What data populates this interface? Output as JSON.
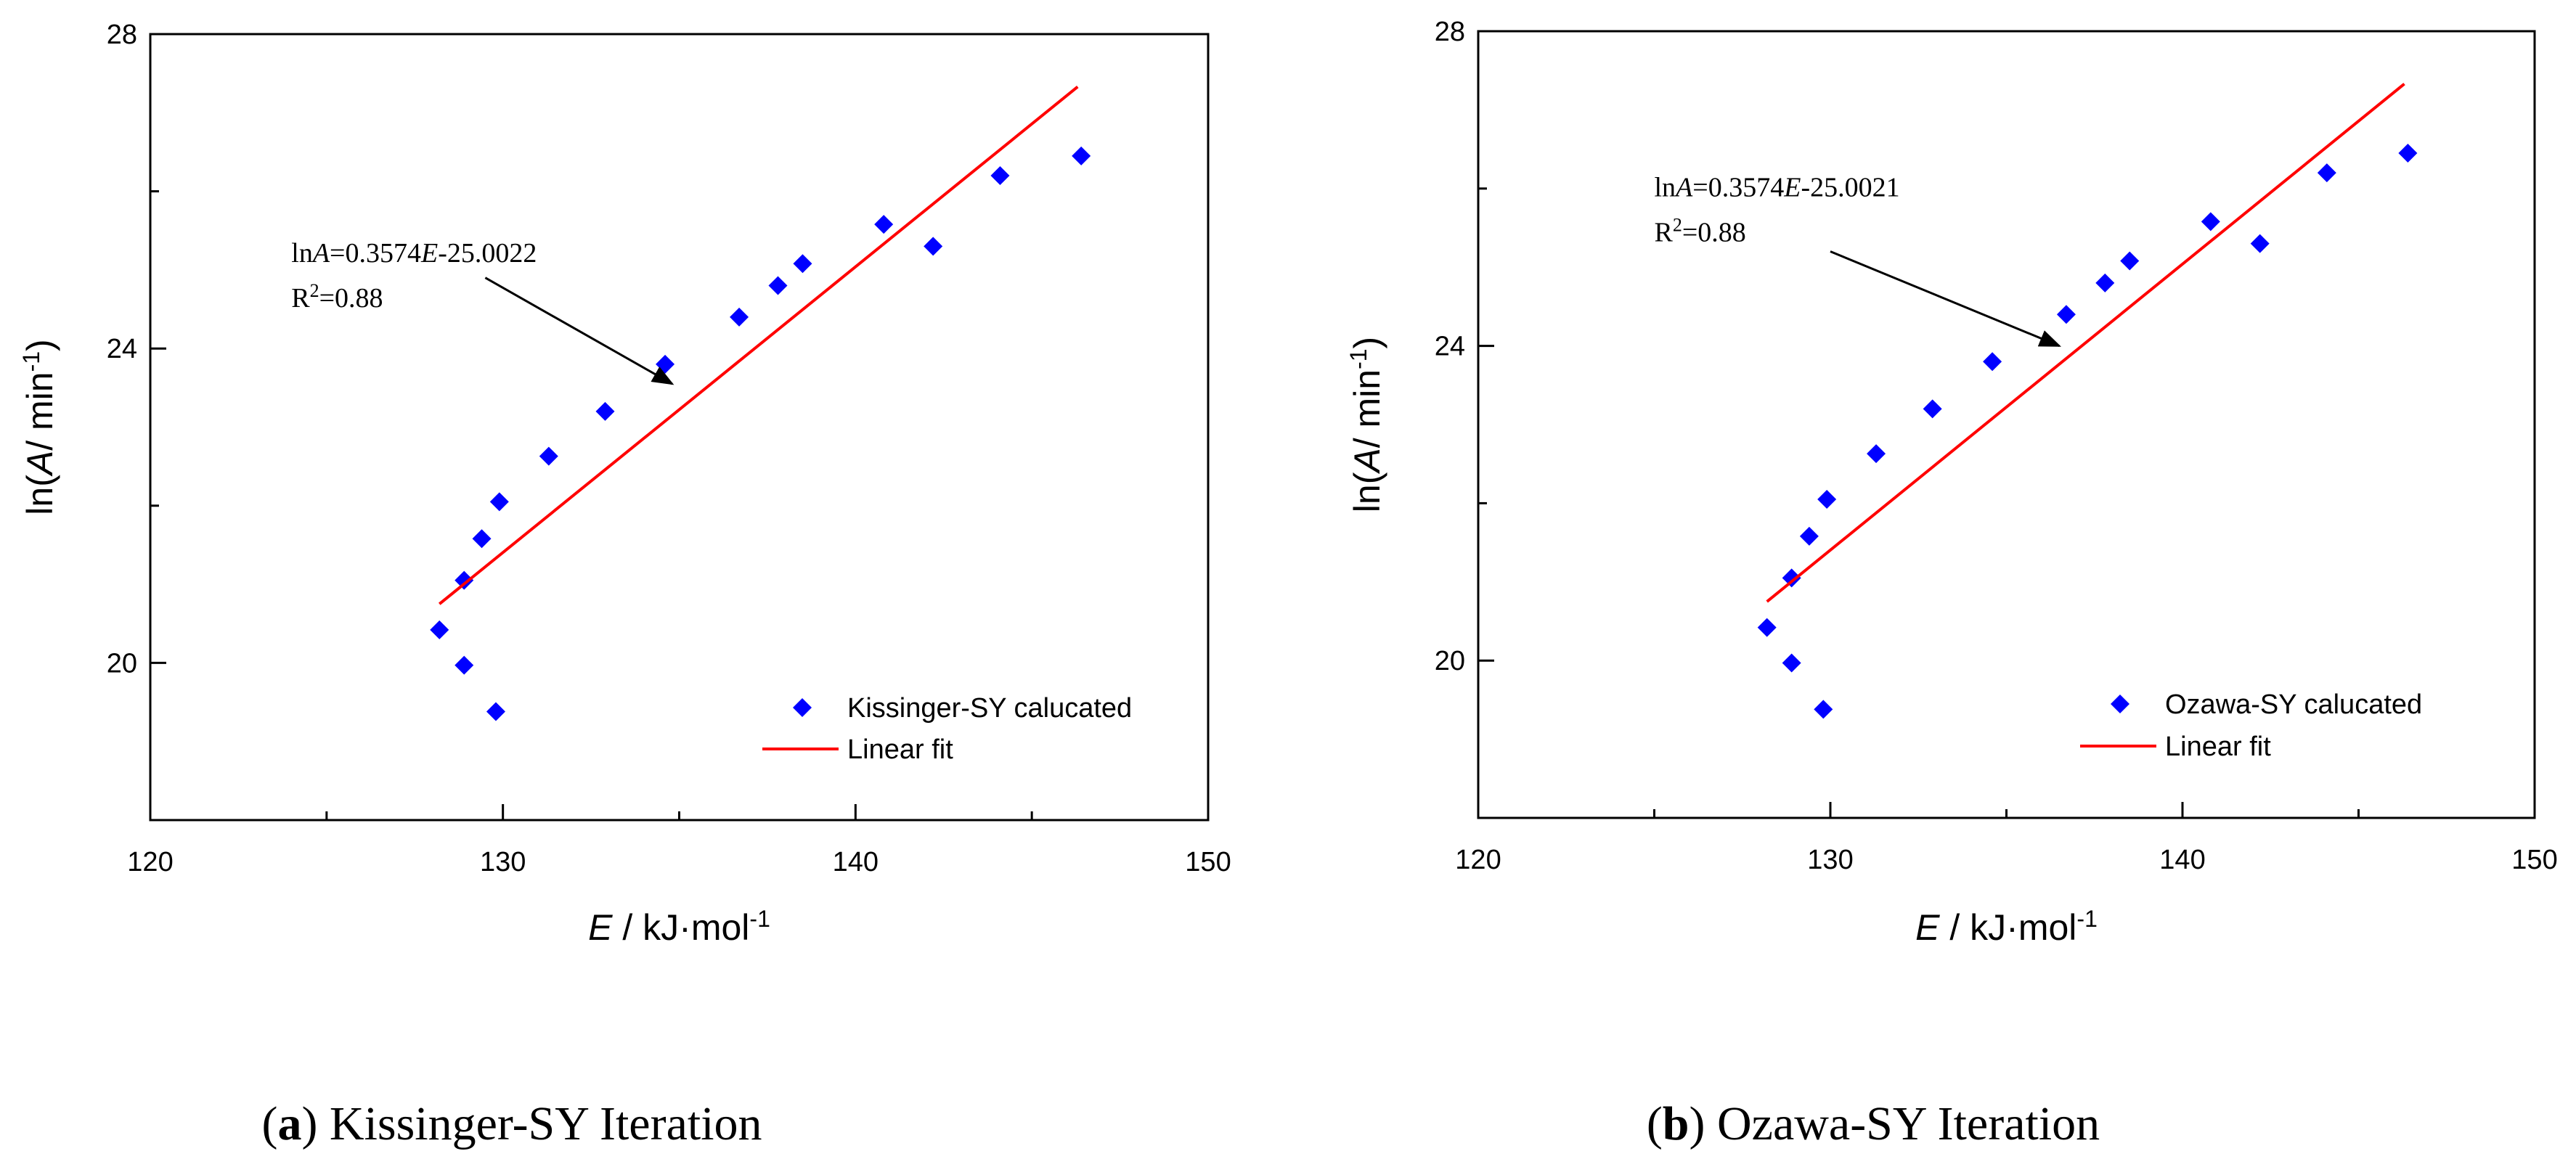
{
  "chart_data": [
    {
      "id": "a",
      "type": "scatter",
      "caption_letter": "a",
      "caption_text": "Kissinger-SY Iteration",
      "xlabel": {
        "italic": "E",
        "rest": " / kJ·mol",
        "sup": "-1"
      },
      "ylabel": {
        "pre": "ln(",
        "italic": "A",
        "rest": "/ min",
        "sup": "-1",
        "post": ")"
      },
      "xlim": [
        120,
        150
      ],
      "ylim": [
        18,
        28
      ],
      "xticks": [
        120,
        130,
        140,
        150
      ],
      "yticks": [
        20,
        24,
        28
      ],
      "legend_position": "bottom-right",
      "series": [
        {
          "name": "Kissinger-SY calucated",
          "marker": "diamond",
          "color": "#0000ff",
          "points": [
            [
              129.8,
              19.38
            ],
            [
              128.9,
              19.97
            ],
            [
              128.2,
              20.42
            ],
            [
              128.9,
              21.05
            ],
            [
              129.4,
              21.58
            ],
            [
              129.9,
              22.05
            ],
            [
              131.3,
              22.63
            ],
            [
              132.9,
              23.2
            ],
            [
              134.6,
              23.8
            ],
            [
              136.7,
              24.4
            ],
            [
              137.8,
              24.8
            ],
            [
              138.5,
              25.08
            ],
            [
              140.8,
              25.58
            ],
            [
              142.2,
              25.3
            ],
            [
              144.1,
              26.2
            ],
            [
              146.4,
              26.45
            ]
          ]
        },
        {
          "name": "Linear fit",
          "line": true,
          "color": "#ff0000",
          "points": [
            [
              128.2,
              20.75
            ],
            [
              146.3,
              27.33
            ]
          ]
        }
      ],
      "annotation": {
        "eq_pre": "ln",
        "eq_italic_a": "A",
        "eq_mid": "=0.3574",
        "eq_italic_e": "E",
        "eq_post": "-25.0022",
        "r2_main": "R",
        "r2_sup": "2",
        "r2_value": "=0.88",
        "anchor": [
          124,
          25.1
        ],
        "arrow_from": [
          129.5,
          24.9
        ],
        "arrow_to": [
          134.8,
          23.55
        ]
      }
    },
    {
      "id": "b",
      "type": "scatter",
      "caption_letter": "b",
      "caption_text": "Ozawa-SY Iteration",
      "xlabel": {
        "italic": "E",
        "rest": " / kJ·mol",
        "sup": "-1"
      },
      "ylabel": {
        "pre": "ln(",
        "italic": "A",
        "rest": "/ min",
        "sup": "-1",
        "post": ")"
      },
      "xlim": [
        120,
        150
      ],
      "ylim": [
        18,
        28
      ],
      "xticks": [
        120,
        130,
        140,
        150
      ],
      "yticks": [
        20,
        24,
        28
      ],
      "legend_position": "bottom-right",
      "series": [
        {
          "name": "Ozawa-SY calucated",
          "marker": "diamond",
          "color": "#0000ff",
          "points": [
            [
              129.8,
              19.38
            ],
            [
              128.9,
              19.97
            ],
            [
              128.2,
              20.42
            ],
            [
              128.9,
              21.05
            ],
            [
              129.4,
              21.58
            ],
            [
              129.9,
              22.05
            ],
            [
              131.3,
              22.63
            ],
            [
              132.9,
              23.2
            ],
            [
              134.6,
              23.8
            ],
            [
              136.7,
              24.4
            ],
            [
              137.8,
              24.8
            ],
            [
              138.5,
              25.08
            ],
            [
              140.8,
              25.58
            ],
            [
              142.2,
              25.3
            ],
            [
              144.1,
              26.2
            ],
            [
              146.4,
              26.45
            ]
          ]
        },
        {
          "name": "Linear fit",
          "line": true,
          "color": "#ff0000",
          "points": [
            [
              128.2,
              20.75
            ],
            [
              146.3,
              27.33
            ]
          ]
        }
      ],
      "annotation": {
        "eq_pre": "ln",
        "eq_italic_a": "A",
        "eq_mid": "=0.3574",
        "eq_italic_e": "E",
        "eq_post": "-25.0021",
        "r2_main": "R",
        "r2_sup": "2",
        "r2_value": "=0.88",
        "anchor": [
          125,
          25.9
        ],
        "arrow_from": [
          130,
          25.2
        ],
        "arrow_to": [
          136.5,
          24.0
        ]
      }
    }
  ]
}
